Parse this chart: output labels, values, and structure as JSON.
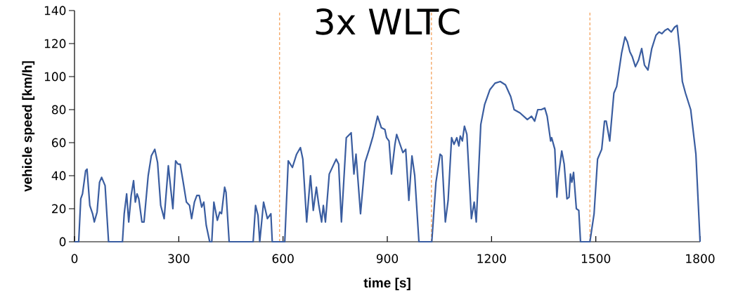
{
  "chart_data": {
    "type": "line",
    "title": "3x WLTC",
    "xlabel": "time [s]",
    "ylabel": "vehicle speed  [km/h]",
    "xlim": [
      0,
      1800
    ],
    "xticks": [
      0,
      300,
      600,
      900,
      1200,
      1500,
      1800
    ],
    "ylim": [
      0,
      140
    ],
    "yticks": [
      0,
      20,
      40,
      60,
      80,
      100,
      120,
      140
    ],
    "ref_lines": [
      {
        "axis": "x",
        "value": 590,
        "color": "#f4a460",
        "line_style": "dashed"
      },
      {
        "axis": "x",
        "value": 1027,
        "color": "#f4a460",
        "line_style": "dashed"
      },
      {
        "axis": "x",
        "value": 1483,
        "color": "#f4a460",
        "line_style": "dashed"
      }
    ],
    "series": [
      {
        "color": "#3a5da0",
        "x": [
          0,
          12,
          18,
          23,
          32,
          36,
          44,
          52,
          57,
          65,
          72,
          78,
          88,
          98,
          138,
          143,
          150,
          156,
          163,
          170,
          175,
          180,
          185,
          194,
          200,
          212,
          221,
          231,
          239,
          248,
          258,
          270,
          283,
          291,
          298,
          304,
          312,
          322,
          331,
          337,
          345,
          352,
          359,
          366,
          372,
          379,
          389,
          395,
          401,
          411,
          418,
          423,
          432,
          436,
          445,
          514,
          521,
          528,
          533,
          544,
          555,
          565,
          569,
          605,
          615,
          627,
          639,
          650,
          657,
          668,
          679,
          687,
          696,
          703,
          711,
          716,
          722,
          733,
          744,
          753,
          760,
          768,
          782,
          796,
          804,
          810,
          823,
          836,
          848,
          859,
          872,
          883,
          893,
          898,
          905,
          912,
          922,
          927,
          935,
          945,
          953,
          962,
          971,
          979,
          991,
          1028,
          1040,
          1052,
          1057,
          1067,
          1075,
          1085,
          1092,
          1100,
          1106,
          1110,
          1116,
          1122,
          1129,
          1142,
          1150,
          1156,
          1169,
          1180,
          1195,
          1210,
          1225,
          1240,
          1255,
          1265,
          1282,
          1303,
          1315,
          1324,
          1333,
          1343,
          1353,
          1360,
          1370,
          1373,
          1382,
          1388,
          1392,
          1402,
          1409,
          1417,
          1423,
          1427,
          1431,
          1436,
          1444,
          1451,
          1456,
          1483,
          1495,
          1505,
          1517,
          1525,
          1530,
          1540,
          1552,
          1560,
          1574,
          1584,
          1591,
          1598,
          1605,
          1614,
          1623,
          1632,
          1640,
          1650,
          1661,
          1673,
          1682,
          1690,
          1699,
          1707,
          1717,
          1727,
          1734,
          1741,
          1749,
          1758,
          1773,
          1788,
          1795,
          1800
        ],
        "values": [
          0,
          0,
          26,
          29,
          43,
          44,
          22,
          17,
          12,
          18,
          36,
          39,
          34,
          0,
          0,
          17,
          29,
          12,
          28,
          37,
          24,
          29,
          26,
          12,
          12,
          40,
          52,
          56,
          48,
          22,
          14,
          46,
          20,
          49,
          47,
          47,
          37,
          24,
          22,
          14,
          24,
          28,
          28,
          21,
          24,
          10,
          0,
          0,
          24,
          13,
          18,
          17,
          33,
          30,
          0,
          0,
          22,
          16,
          0,
          24,
          14,
          17,
          0,
          0,
          49,
          45,
          53,
          57,
          50,
          12,
          40,
          19,
          33,
          22,
          12,
          22,
          12,
          41,
          46,
          50,
          47,
          12,
          63,
          66,
          41,
          53,
          17,
          48,
          56,
          64,
          76,
          69,
          68,
          63,
          61,
          41,
          59,
          65,
          60,
          54,
          56,
          25,
          52,
          40,
          0,
          0,
          36,
          53,
          52,
          12,
          25,
          63,
          59,
          63,
          58,
          64,
          61,
          70,
          65,
          14,
          24,
          12,
          71,
          83,
          92,
          96,
          97,
          95,
          88,
          80,
          78,
          74,
          76,
          73,
          80,
          80,
          81,
          76,
          61,
          63,
          56,
          27,
          39,
          55,
          47,
          26,
          27,
          41,
          36,
          42,
          20,
          19,
          0,
          0,
          17,
          50,
          56,
          73,
          73,
          61,
          90,
          94,
          114,
          124,
          121,
          115,
          112,
          106,
          110,
          117,
          107,
          104,
          117,
          125,
          127,
          126,
          128,
          129,
          127,
          130,
          131,
          117,
          97,
          90,
          80,
          53,
          22,
          0
        ]
      }
    ]
  }
}
